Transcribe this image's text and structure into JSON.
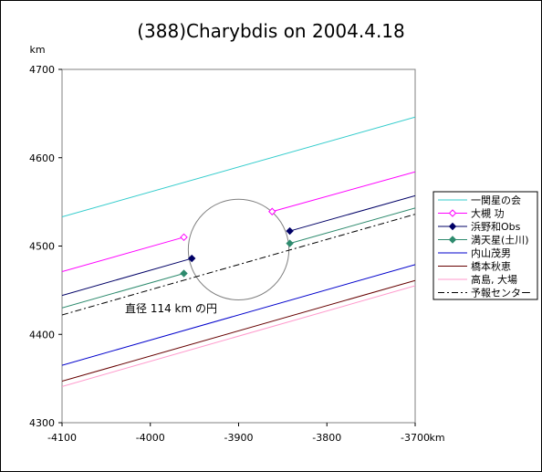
{
  "chart_data": {
    "type": "line",
    "title": "(388)Charybdis on 2004.4.18",
    "ylabel": "km",
    "xlabel": "km",
    "xlim": [
      -4100,
      -3700
    ],
    "ylim": [
      4300,
      4700
    ],
    "xticks": [
      -4100,
      -4000,
      -3900,
      -3800,
      -3700
    ],
    "yticks": [
      4300,
      4400,
      4500,
      4600,
      4700
    ],
    "grid": false,
    "legend_position": "right",
    "annotation": "直径 114 km の円",
    "circle": {
      "cx": -3900,
      "cy": 4496,
      "r": 57
    },
    "series": [
      {
        "name": "一関星の会",
        "color": "#33cccc",
        "marker": "none",
        "dash": "solid",
        "segments": [
          {
            "x": [
              -4100,
              -3700
            ],
            "y": [
              4533,
              4646
            ]
          }
        ]
      },
      {
        "name": "大槻 功",
        "color": "#ff00ff",
        "marker": "diamond-open",
        "dash": "solid",
        "segments": [
          {
            "x": [
              -4100,
              -3962
            ],
            "y": [
              4471,
              4510
            ]
          },
          {
            "x": [
              -3862,
              -3700
            ],
            "y": [
              4539,
              4584
            ]
          }
        ]
      },
      {
        "name": "浜野和Obs",
        "color": "#000066",
        "marker": "diamond-filled",
        "dash": "solid",
        "segments": [
          {
            "x": [
              -4100,
              -3953
            ],
            "y": [
              4444,
              4486
            ]
          },
          {
            "x": [
              -3842,
              -3700
            ],
            "y": [
              4517,
              4557
            ]
          }
        ]
      },
      {
        "name": "満天星(土川)",
        "color": "#2e8b6e",
        "marker": "diamond-filled",
        "dash": "solid",
        "segments": [
          {
            "x": [
              -4100,
              -3962
            ],
            "y": [
              4430,
              4469
            ]
          },
          {
            "x": [
              -3842,
              -3700
            ],
            "y": [
              4503,
              4543
            ]
          }
        ]
      },
      {
        "name": "内山茂男",
        "color": "#0000cc",
        "marker": "none",
        "dash": "solid",
        "segments": [
          {
            "x": [
              -4100,
              -3700
            ],
            "y": [
              4365,
              4479
            ]
          }
        ]
      },
      {
        "name": "橋本秋恵",
        "color": "#660000",
        "marker": "none",
        "dash": "solid",
        "segments": [
          {
            "x": [
              -4100,
              -3700
            ],
            "y": [
              4347,
              4461
            ]
          }
        ]
      },
      {
        "name": "高島, 大場",
        "color": "#ff99cc",
        "marker": "none",
        "dash": "solid",
        "segments": [
          {
            "x": [
              -4100,
              -3700
            ],
            "y": [
              4341,
              4455
            ]
          }
        ]
      },
      {
        "name": "予報センター",
        "color": "#000000",
        "marker": "none",
        "dash": "dashdot",
        "segments": [
          {
            "x": [
              -4100,
              -3700
            ],
            "y": [
              4422,
              4536
            ]
          }
        ]
      }
    ]
  }
}
